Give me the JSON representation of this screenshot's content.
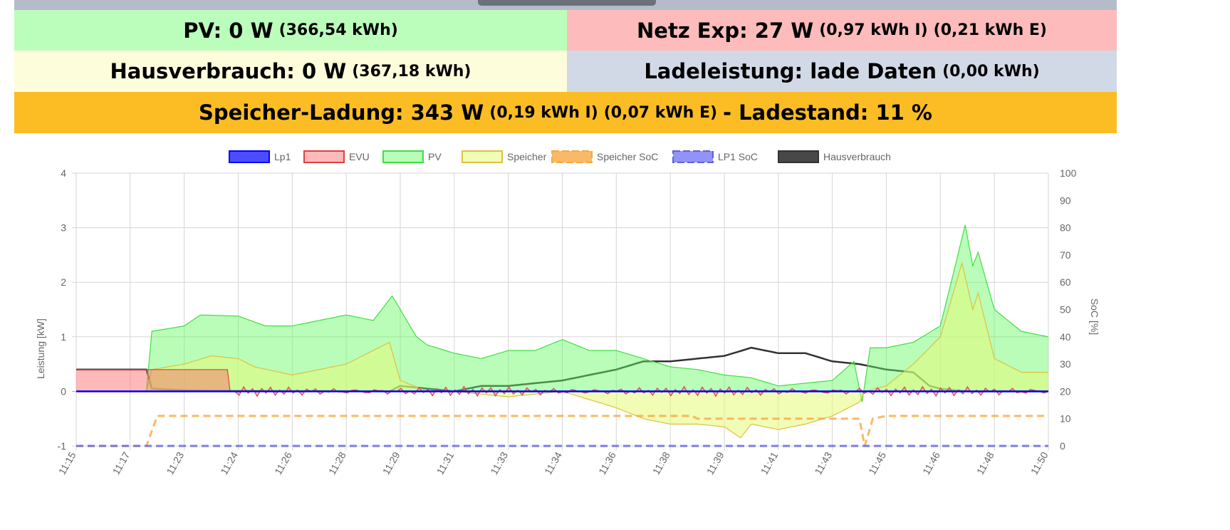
{
  "colors": {
    "pv": "#bbfdbb",
    "netz": "#fdbbbb",
    "haus": "#fdfddc",
    "lade": "#d2d9e6",
    "speicher": "#fbbd23"
  },
  "pv": {
    "label": "PV: 0 W",
    "total": "(366,54 kWh)"
  },
  "netz": {
    "label": "Netz Exp: 27 W",
    "import": "(0,97 kWh I)",
    "export": "(0,21 kWh E)"
  },
  "haus": {
    "label": "Hausverbrauch: 0 W",
    "total": "(367,18 kWh)"
  },
  "lade": {
    "label": "Ladeleistung: lade Daten",
    "total": "(0,00 kWh)"
  },
  "speicher": {
    "label": "Speicher-Ladung: 343 W",
    "import": "(0,19 kWh I)",
    "export": "(0,07 kWh E)",
    "soc": "- Ladestand: 11 %"
  },
  "chart_data": {
    "type": "line",
    "x_labels": [
      "11:15",
      "11:17",
      "11:23",
      "11:24",
      "11:26",
      "11:28",
      "11:29",
      "11:31",
      "11:33",
      "11:34",
      "11:36",
      "11:38",
      "11:39",
      "11:41",
      "11:43",
      "11:45",
      "11:46",
      "11:48",
      "11:50"
    ],
    "ylabel": "Leistung [kW]",
    "ylim": [
      -1,
      4
    ],
    "yticks": [
      "4",
      "3",
      "2",
      "1",
      "0",
      "-1"
    ],
    "y2label": "SoC [%]",
    "y2lim": [
      0,
      100
    ],
    "y2ticks": [
      "100",
      "90",
      "80",
      "70",
      "60",
      "50",
      "40",
      "30",
      "20",
      "10",
      "0"
    ],
    "legend_position": "top",
    "series": [
      {
        "name": "Lp1",
        "color": "#0000ff",
        "fill": "rgba(0,0,255,0.7)",
        "axis": "kW",
        "points": [
          [
            0,
            0
          ],
          [
            18,
            0
          ]
        ]
      },
      {
        "name": "EVU",
        "color": "#e04040",
        "fill": "rgba(255,100,100,0.45)",
        "axis": "kW",
        "noise": true,
        "points": [
          [
            0,
            0.4
          ],
          [
            2.8,
            0.4
          ],
          [
            2.85,
            0
          ],
          [
            18,
            0
          ]
        ]
      },
      {
        "name": "PV",
        "color": "#40e040",
        "fill": "rgba(100,250,100,0.45)",
        "axis": "kW",
        "points": [
          [
            0,
            0
          ],
          [
            1.3,
            0
          ],
          [
            1.4,
            1.1
          ],
          [
            2,
            1.2
          ],
          [
            2.3,
            1.4
          ],
          [
            3,
            1.38
          ],
          [
            3.5,
            1.2
          ],
          [
            4,
            1.2
          ],
          [
            4.5,
            1.3
          ],
          [
            5,
            1.4
          ],
          [
            5.5,
            1.3
          ],
          [
            5.85,
            1.75
          ],
          [
            6.3,
            1.0
          ],
          [
            6.5,
            0.85
          ],
          [
            7,
            0.7
          ],
          [
            7.5,
            0.6
          ],
          [
            8,
            0.75
          ],
          [
            8.5,
            0.75
          ],
          [
            9,
            0.95
          ],
          [
            9.5,
            0.75
          ],
          [
            10,
            0.75
          ],
          [
            10.5,
            0.6
          ],
          [
            11,
            0.45
          ],
          [
            11.5,
            0.4
          ],
          [
            12,
            0.3
          ],
          [
            12.5,
            0.25
          ],
          [
            13,
            0.1
          ],
          [
            13.5,
            0.15
          ],
          [
            14,
            0.2
          ],
          [
            14.4,
            0.55
          ],
          [
            14.55,
            -0.2
          ],
          [
            14.7,
            0.8
          ],
          [
            15,
            0.8
          ],
          [
            15.5,
            0.9
          ],
          [
            16,
            1.2
          ],
          [
            16.2,
            2.0
          ],
          [
            16.46,
            3.05
          ],
          [
            16.6,
            2.3
          ],
          [
            16.7,
            2.55
          ],
          [
            17,
            1.5
          ],
          [
            17.5,
            1.1
          ],
          [
            18,
            1.0
          ]
        ]
      },
      {
        "name": "Speicher",
        "color": "#e0c040",
        "fill": "rgba(230,250,120,0.55)",
        "axis": "kW",
        "points": [
          [
            0,
            0
          ],
          [
            1.3,
            0
          ],
          [
            1.4,
            0.4
          ],
          [
            2,
            0.5
          ],
          [
            2.5,
            0.65
          ],
          [
            3,
            0.6
          ],
          [
            3.3,
            0.45
          ],
          [
            4,
            0.3
          ],
          [
            5,
            0.5
          ],
          [
            5.8,
            0.9
          ],
          [
            6,
            0.2
          ],
          [
            6.5,
            0
          ],
          [
            7,
            0
          ],
          [
            8,
            -0.1
          ],
          [
            9,
            0
          ],
          [
            9.5,
            -0.15
          ],
          [
            10,
            -0.3
          ],
          [
            10.5,
            -0.5
          ],
          [
            11,
            -0.6
          ],
          [
            11.5,
            -0.6
          ],
          [
            12,
            -0.65
          ],
          [
            12.3,
            -0.85
          ],
          [
            12.5,
            -0.6
          ],
          [
            13,
            -0.7
          ],
          [
            13.5,
            -0.6
          ],
          [
            14,
            -0.45
          ],
          [
            14.5,
            -0.2
          ],
          [
            14.6,
            0
          ],
          [
            15,
            0.1
          ],
          [
            15.5,
            0.5
          ],
          [
            16,
            1.0
          ],
          [
            16.4,
            2.35
          ],
          [
            16.6,
            1.5
          ],
          [
            16.7,
            1.8
          ],
          [
            17,
            0.6
          ],
          [
            17.5,
            0.35
          ],
          [
            18,
            0.35
          ]
        ]
      },
      {
        "name": "Speicher SoC",
        "color": "#f8a840",
        "fill": "rgba(248,168,64,0.8)",
        "axis": "soc",
        "dashed": true,
        "points": [
          [
            0,
            0
          ],
          [
            1.3,
            0
          ],
          [
            1.5,
            11
          ],
          [
            11.4,
            11
          ],
          [
            11.5,
            10
          ],
          [
            14.5,
            10
          ],
          [
            14.6,
            0
          ],
          [
            14.75,
            10
          ],
          [
            15,
            11
          ],
          [
            18,
            11
          ]
        ]
      },
      {
        "name": "LP1 SoC",
        "color": "#6060e0",
        "fill": "rgba(100,100,250,0.7)",
        "axis": "soc",
        "dashed": true,
        "points": [
          [
            0,
            0
          ],
          [
            18,
            0
          ]
        ]
      },
      {
        "name": "Hausverbrauch",
        "color": "#333333",
        "fill": "rgba(40,40,40,0.85)",
        "axis": "kW",
        "points": [
          [
            0,
            0.4
          ],
          [
            1.3,
            0.4
          ],
          [
            1.4,
            0.05
          ],
          [
            2,
            0.02
          ],
          [
            5.8,
            0
          ],
          [
            6,
            0.1
          ],
          [
            7,
            0
          ],
          [
            7.5,
            0.1
          ],
          [
            8,
            0.1
          ],
          [
            9,
            0.2
          ],
          [
            9.5,
            0.3
          ],
          [
            10,
            0.4
          ],
          [
            10.5,
            0.55
          ],
          [
            11,
            0.55
          ],
          [
            11.5,
            0.6
          ],
          [
            12,
            0.65
          ],
          [
            12.5,
            0.8
          ],
          [
            13,
            0.7
          ],
          [
            13.5,
            0.7
          ],
          [
            14,
            0.55
          ],
          [
            14.5,
            0.5
          ],
          [
            15,
            0.4
          ],
          [
            15.5,
            0.35
          ],
          [
            15.8,
            0.1
          ],
          [
            16,
            0.05
          ],
          [
            16.5,
            0
          ],
          [
            18,
            0
          ]
        ]
      }
    ]
  }
}
